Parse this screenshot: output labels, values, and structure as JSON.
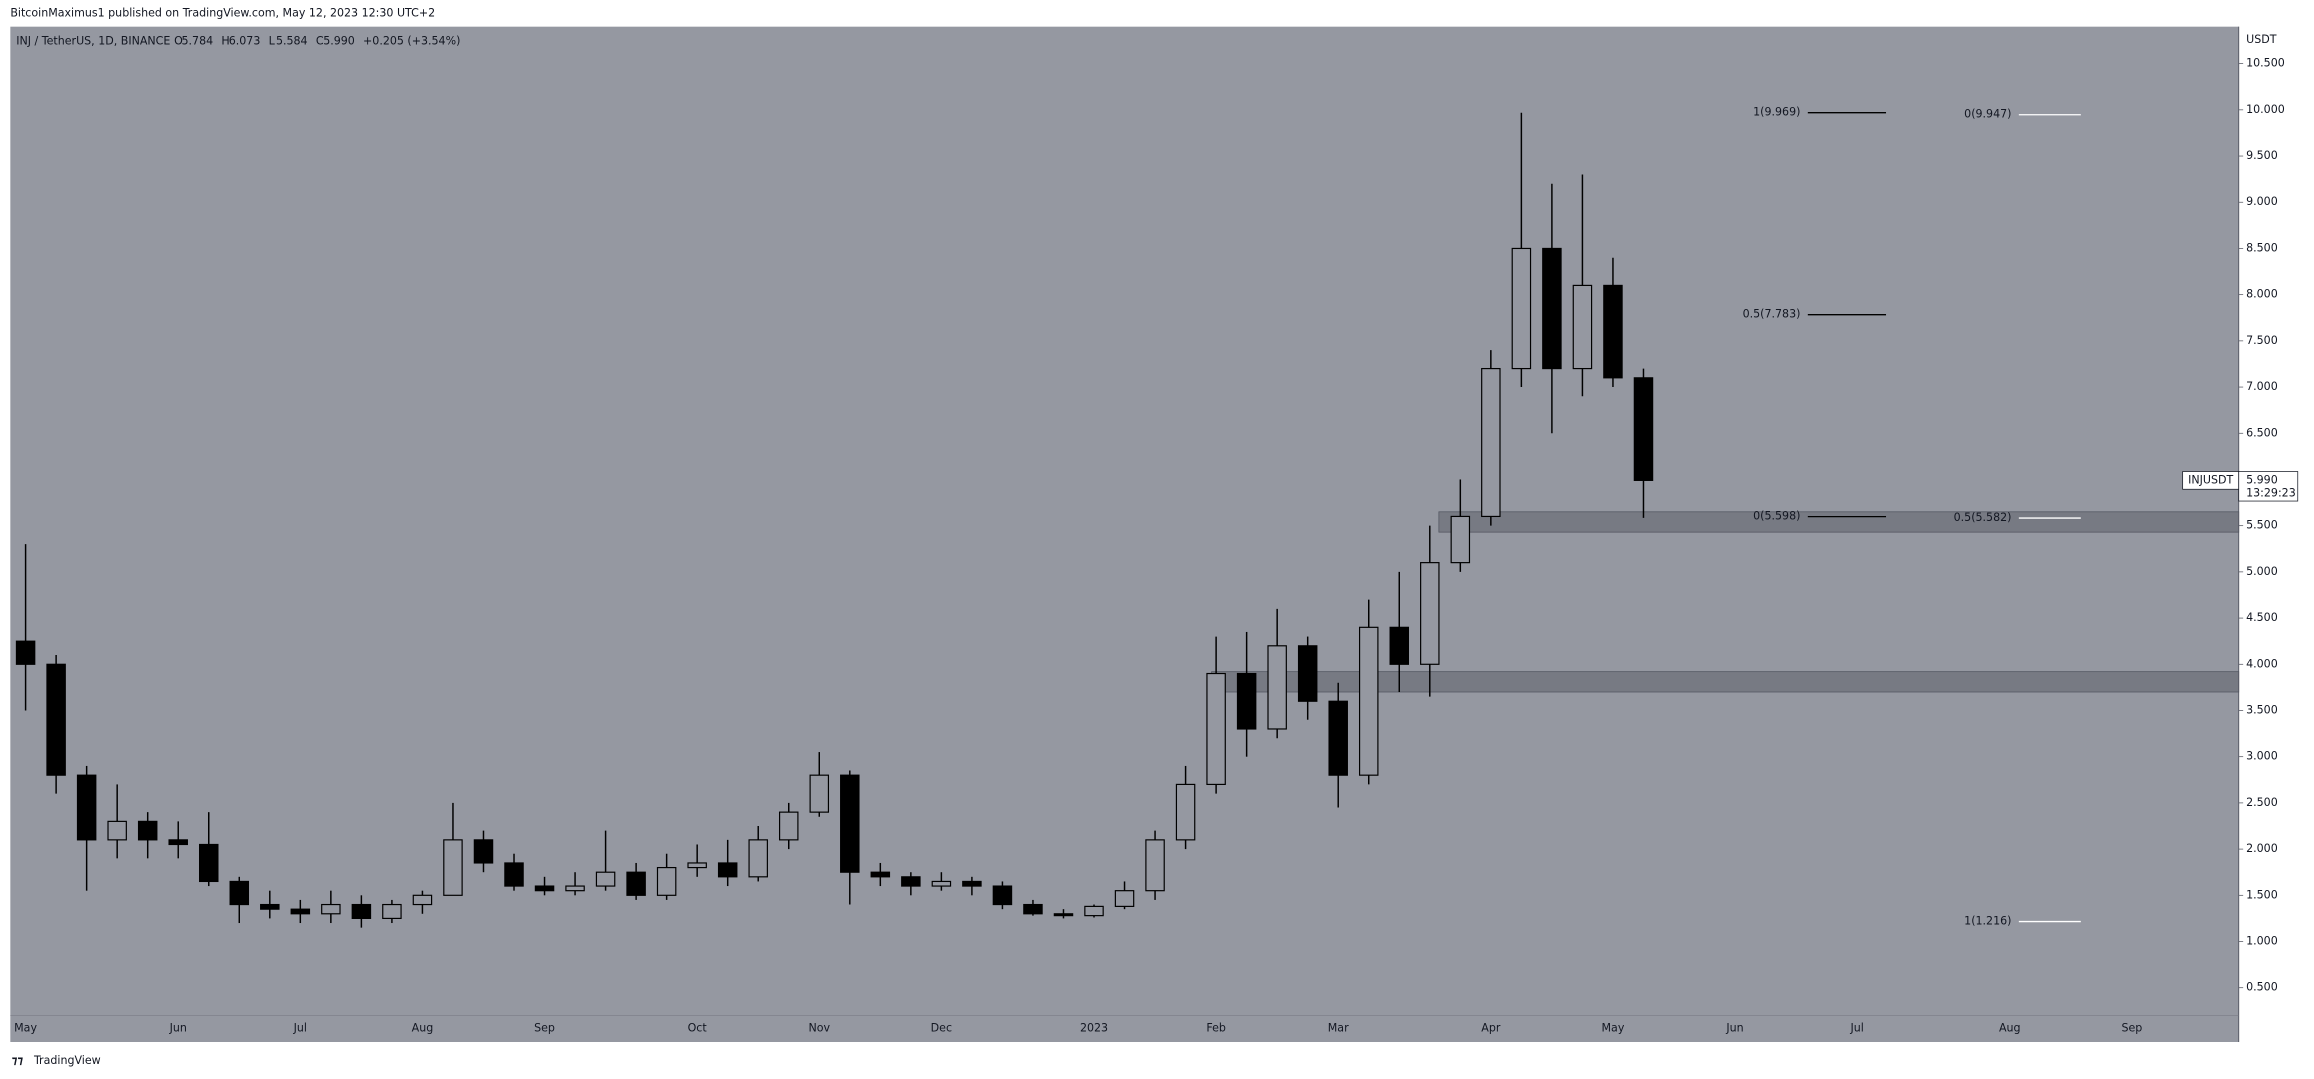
{
  "header": {
    "published": "BitcoinMaximus1 published on TradingView.com, May 12, 2023 12:30 UTC+2",
    "symbol": "INJ / TetherUS, 1D, BINANCE",
    "ohlc": [
      {
        "key": "O",
        "value": "5.784"
      },
      {
        "key": "H",
        "value": "6.073"
      },
      {
        "key": "L",
        "value": "5.584"
      },
      {
        "key": "C",
        "value": "5.990"
      }
    ],
    "change": "+0.205 (+3.54%)"
  },
  "footer": {
    "brand": "TradingView"
  },
  "chart_data": {
    "type": "candlestick",
    "y_unit": "USDT",
    "categories": [
      "May",
      null,
      null,
      null,
      null,
      "Jun",
      null,
      null,
      null,
      "Jul",
      null,
      null,
      null,
      "Aug",
      null,
      null,
      null,
      "Sep",
      null,
      null,
      null,
      null,
      "Oct",
      null,
      null,
      null,
      "Nov",
      null,
      null,
      null,
      "Dec",
      null,
      null,
      null,
      null,
      "2023",
      null,
      null,
      null,
      "Feb",
      null,
      null,
      null,
      "Mar",
      null,
      null,
      null,
      null,
      "Apr",
      null,
      null,
      null,
      "May",
      null,
      null,
      null,
      "Jun",
      null,
      null,
      null,
      "Jul",
      null,
      null,
      null,
      null,
      "Aug",
      null,
      null,
      null,
      "Sep",
      null,
      null,
      null
    ],
    "open": [
      4.25,
      4.0,
      2.8,
      2.1,
      2.3,
      2.1,
      2.05,
      1.65,
      1.4,
      1.35,
      1.3,
      1.4,
      1.25,
      1.4,
      1.5,
      2.1,
      1.85,
      1.6,
      1.55,
      1.6,
      1.75,
      1.5,
      1.8,
      1.85,
      1.7,
      2.1,
      2.4,
      2.8,
      1.75,
      1.7,
      1.6,
      1.65,
      1.6,
      1.4,
      1.3,
      1.28,
      1.38,
      1.55,
      2.1,
      2.7,
      3.9,
      3.3,
      4.2,
      3.6,
      2.8,
      4.4,
      4.0,
      5.1,
      5.6,
      7.2,
      8.5,
      7.2,
      8.1,
      7.1,
      null,
      null,
      null,
      null,
      null,
      null,
      null,
      null,
      null,
      null,
      null,
      null,
      null,
      null,
      null,
      null,
      null,
      null,
      null
    ],
    "high": [
      5.3,
      4.1,
      2.9,
      2.7,
      2.4,
      2.3,
      2.4,
      1.7,
      1.55,
      1.45,
      1.55,
      1.5,
      1.45,
      1.55,
      2.5,
      2.2,
      1.95,
      1.7,
      1.75,
      2.2,
      1.85,
      1.95,
      2.05,
      2.1,
      2.25,
      2.5,
      3.05,
      2.85,
      1.85,
      1.75,
      1.75,
      1.7,
      1.65,
      1.45,
      1.35,
      1.4,
      1.65,
      2.2,
      2.9,
      4.3,
      4.35,
      4.6,
      4.3,
      3.8,
      4.7,
      5.0,
      5.5,
      6.0,
      7.4,
      9.969,
      9.2,
      9.3,
      8.4,
      7.2,
      null,
      null,
      null,
      null,
      null,
      null,
      null,
      null,
      null,
      null,
      null,
      null,
      null,
      null,
      null,
      null,
      null,
      null,
      null
    ],
    "low": [
      3.5,
      2.6,
      1.55,
      1.9,
      1.9,
      1.9,
      1.6,
      1.2,
      1.25,
      1.2,
      1.2,
      1.15,
      1.2,
      1.3,
      1.5,
      1.75,
      1.55,
      1.5,
      1.5,
      1.55,
      1.45,
      1.45,
      1.7,
      1.6,
      1.65,
      2.0,
      2.35,
      1.4,
      1.6,
      1.5,
      1.55,
      1.5,
      1.35,
      1.28,
      1.25,
      1.26,
      1.35,
      1.45,
      2.0,
      2.6,
      3.0,
      3.2,
      3.4,
      2.45,
      2.7,
      3.7,
      3.65,
      5.0,
      5.5,
      7.0,
      6.5,
      6.9,
      7.0,
      5.584,
      null,
      null,
      null,
      null,
      null,
      null,
      null,
      null,
      null,
      null,
      null,
      null,
      null,
      null,
      null,
      null,
      null,
      null,
      null
    ],
    "close": [
      4.0,
      2.8,
      2.1,
      2.3,
      2.1,
      2.05,
      1.65,
      1.4,
      1.35,
      1.3,
      1.4,
      1.25,
      1.4,
      1.5,
      2.1,
      1.85,
      1.6,
      1.55,
      1.6,
      1.75,
      1.5,
      1.8,
      1.85,
      1.7,
      2.1,
      2.4,
      2.8,
      1.75,
      1.7,
      1.6,
      1.65,
      1.6,
      1.4,
      1.3,
      1.28,
      1.38,
      1.55,
      2.1,
      2.7,
      3.9,
      3.3,
      4.2,
      3.6,
      2.8,
      4.4,
      4.0,
      5.1,
      5.6,
      7.2,
      8.5,
      7.2,
      8.1,
      7.1,
      5.99,
      null,
      null,
      null,
      null,
      null,
      null,
      null,
      null,
      null,
      null,
      null,
      null,
      null,
      null,
      null,
      null,
      null,
      null,
      null
    ],
    "ylim": [
      0.2,
      10.9
    ],
    "yticks": [
      {
        "value": 0.5,
        "label": "0.500"
      },
      {
        "value": 1,
        "label": "1.000"
      },
      {
        "value": 1.5,
        "label": "1.500"
      },
      {
        "value": 2,
        "label": "2.000"
      },
      {
        "value": 2.5,
        "label": "2.500"
      },
      {
        "value": 3,
        "label": "3.000"
      },
      {
        "value": 3.5,
        "label": "3.500"
      },
      {
        "value": 4,
        "label": "4.000"
      },
      {
        "value": 4.5,
        "label": "4.500"
      },
      {
        "value": 5,
        "label": "5.000"
      },
      {
        "value": 5.5,
        "label": "5.500"
      },
      {
        "value": 6,
        "label": "6.000"
      },
      {
        "value": 6.5,
        "label": "6.500"
      },
      {
        "value": 7,
        "label": "7.000"
      },
      {
        "value": 7.5,
        "label": "7.500"
      },
      {
        "value": 8,
        "label": "8.000"
      },
      {
        "value": 8.5,
        "label": "8.500"
      },
      {
        "value": 9,
        "label": "9.000"
      },
      {
        "value": 9.5,
        "label": "9.500"
      },
      {
        "value": 10,
        "label": "10.000"
      },
      {
        "value": 10.5,
        "label": "10.500"
      }
    ],
    "up_color": "#9598a1",
    "down_color": "#000000",
    "background": "#9598a1",
    "zones": [
      {
        "from": 5.43,
        "to": 5.65
      },
      {
        "from": 3.7,
        "to": 3.92
      }
    ],
    "fib_levels": [
      {
        "label": "1(9.969)",
        "value": 9.969,
        "color": "#000000"
      },
      {
        "label": "0.5(7.783)",
        "value": 7.783,
        "color": "#000000"
      },
      {
        "label": "0(5.598)",
        "value": 5.598,
        "color": "#000000"
      },
      {
        "label": "0(9.947)",
        "value": 9.947,
        "color": "#ffffff"
      },
      {
        "label": "0.5(5.582)",
        "value": 5.582,
        "color": "#ffffff"
      },
      {
        "label": "1(1.216)",
        "value": 1.216,
        "color": "#ffffff"
      }
    ],
    "last_price": {
      "symbol": "INJUSDT",
      "value": 5.99,
      "label": "5.990",
      "countdown": "13:29:23"
    }
  }
}
